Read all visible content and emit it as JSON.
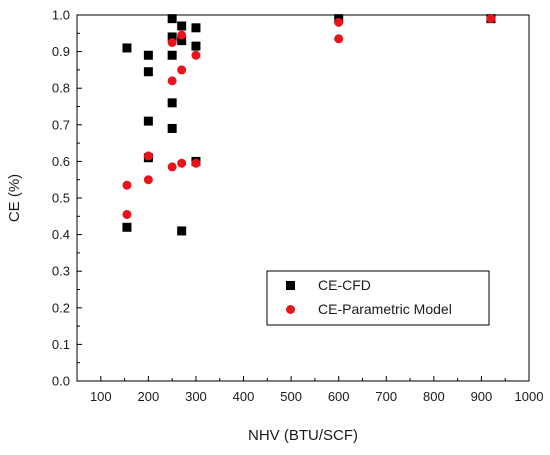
{
  "chart_data": {
    "type": "scatter",
    "title": "",
    "xlabel": "NHV (BTU/SCF)",
    "ylabel": "CE (%)",
    "xlim": [
      50,
      1000
    ],
    "ylim": [
      0.0,
      1.0
    ],
    "x_ticks": [
      100,
      200,
      300,
      400,
      500,
      600,
      700,
      800,
      900,
      1000
    ],
    "y_ticks": [
      0.0,
      0.1,
      0.2,
      0.3,
      0.4,
      0.5,
      0.6,
      0.7,
      0.8,
      0.9,
      1.0
    ],
    "x_tick_labels": [
      "100",
      "200",
      "300",
      "400",
      "500",
      "600",
      "700",
      "800",
      "900",
      "1000"
    ],
    "y_tick_labels": [
      "0.0",
      "0.1",
      "0.2",
      "0.3",
      "0.4",
      "0.5",
      "0.6",
      "0.7",
      "0.8",
      "0.9",
      "1.0"
    ],
    "grid": false,
    "legend_position": "lower-right",
    "series": [
      {
        "name": "CE-CFD",
        "marker": "square",
        "color": "#000000",
        "points": [
          [
            155,
            0.91
          ],
          [
            155,
            0.42
          ],
          [
            200,
            0.89
          ],
          [
            200,
            0.845
          ],
          [
            200,
            0.71
          ],
          [
            200,
            0.61
          ],
          [
            250,
            0.99
          ],
          [
            250,
            0.94
          ],
          [
            250,
            0.89
          ],
          [
            250,
            0.76
          ],
          [
            250,
            0.69
          ],
          [
            270,
            0.97
          ],
          [
            270,
            0.93
          ],
          [
            270,
            0.41
          ],
          [
            300,
            0.965
          ],
          [
            300,
            0.915
          ],
          [
            300,
            0.6
          ],
          [
            600,
            0.99
          ],
          [
            920,
            0.99
          ]
        ]
      },
      {
        "name": "CE-Parametric Model",
        "marker": "circle",
        "color": "#e8141b",
        "points": [
          [
            155,
            0.535
          ],
          [
            155,
            0.455
          ],
          [
            200,
            0.615
          ],
          [
            200,
            0.55
          ],
          [
            250,
            0.925
          ],
          [
            250,
            0.82
          ],
          [
            250,
            0.585
          ],
          [
            270,
            0.945
          ],
          [
            270,
            0.85
          ],
          [
            270,
            0.595
          ],
          [
            300,
            0.89
          ],
          [
            300,
            0.595
          ],
          [
            600,
            0.98
          ],
          [
            600,
            0.935
          ],
          [
            920,
            0.99
          ]
        ]
      }
    ]
  }
}
